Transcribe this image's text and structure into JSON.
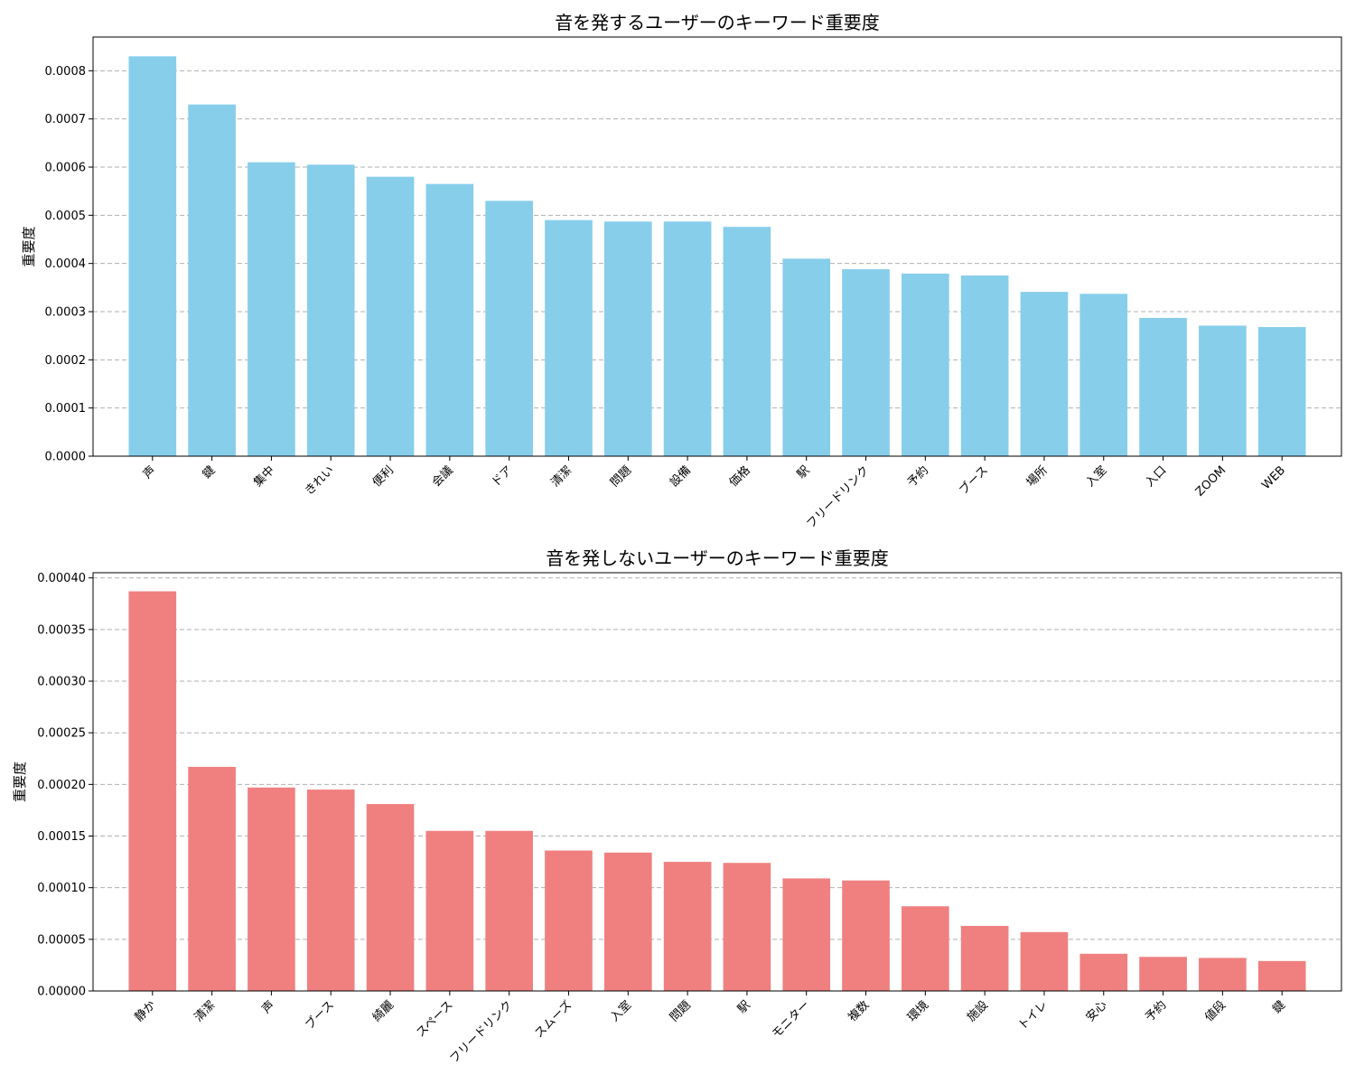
{
  "chart_data": [
    {
      "type": "bar",
      "title": "音を発するユーザーのキーワード重要度",
      "xlabel": "",
      "ylabel": "重要度",
      "ylim": [
        0,
        0.00087
      ],
      "yticks": [
        0.0,
        0.0001,
        0.0002,
        0.0003,
        0.0004,
        0.0005,
        0.0006,
        0.0007,
        0.0008
      ],
      "ytick_labels": [
        "0.0000",
        "0.0001",
        "0.0002",
        "0.0003",
        "0.0004",
        "0.0005",
        "0.0006",
        "0.0007",
        "0.0008"
      ],
      "color": "#87ceeb",
      "grid": true,
      "categories": [
        "声",
        "鍵",
        "集中",
        "きれい",
        "便利",
        "会議",
        "ドア",
        "清潔",
        "問題",
        "設備",
        "価格",
        "駅",
        "フリードリンク",
        "予約",
        "ブース",
        "場所",
        "入室",
        "入口",
        "ZOOM",
        "WEB"
      ],
      "values": [
        0.00083,
        0.00073,
        0.00061,
        0.000605,
        0.00058,
        0.000565,
        0.00053,
        0.00049,
        0.000487,
        0.000487,
        0.000476,
        0.00041,
        0.000388,
        0.000379,
        0.000375,
        0.000341,
        0.000337,
        0.000287,
        0.000271,
        0.000268
      ]
    },
    {
      "type": "bar",
      "title": "音を発しないユーザーのキーワード重要度",
      "xlabel": "",
      "ylabel": "重要度",
      "ylim": [
        0,
        0.000405
      ],
      "yticks": [
        0.0,
        5e-05,
        0.0001,
        0.00015,
        0.0002,
        0.00025,
        0.0003,
        0.00035,
        0.0004
      ],
      "ytick_labels": [
        "0.00000",
        "0.00005",
        "0.00010",
        "0.00015",
        "0.00020",
        "0.00025",
        "0.00030",
        "0.00035",
        "0.00040"
      ],
      "color": "#f08080",
      "grid": true,
      "categories": [
        "静か",
        "清潔",
        "声",
        "ブース",
        "綺麗",
        "スペース",
        "フリードリンク",
        "スムーズ",
        "入室",
        "問題",
        "駅",
        "モニター",
        "複数",
        "環境",
        "施設",
        "トイレ",
        "安心",
        "予約",
        "値段",
        "鍵"
      ],
      "values": [
        0.000387,
        0.000217,
        0.000197,
        0.000195,
        0.000181,
        0.000155,
        0.000155,
        0.000136,
        0.000134,
        0.000125,
        0.000124,
        0.000109,
        0.000107,
        8.2e-05,
        6.3e-05,
        5.7e-05,
        3.6e-05,
        3.3e-05,
        3.2e-05,
        2.9e-05
      ]
    }
  ]
}
